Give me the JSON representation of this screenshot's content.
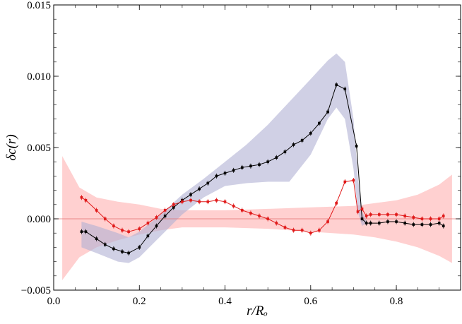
{
  "chart_data": {
    "type": "line",
    "title": "",
    "xlabel": "r/Rₒ",
    "ylabel": "δc(r)",
    "xlim": [
      0.0,
      0.95
    ],
    "ylim": [
      -0.005,
      0.015
    ],
    "x_ticks": [
      {
        "value": 0.0,
        "label": "0.0"
      },
      {
        "value": 0.2,
        "label": "0.2"
      },
      {
        "value": 0.4,
        "label": "0.4"
      },
      {
        "value": 0.6,
        "label": "0.6"
      },
      {
        "value": 0.8,
        "label": "0.8"
      }
    ],
    "y_ticks": [
      {
        "value": -0.005,
        "label": "−0.005"
      },
      {
        "value": 0.0,
        "label": "0.000"
      },
      {
        "value": 0.005,
        "label": "0.005"
      },
      {
        "value": 0.01,
        "label": "0.010"
      },
      {
        "value": 0.015,
        "label": "0.015"
      }
    ],
    "grid": false,
    "reference_line": {
      "y": 0.0,
      "color": "#e07070"
    },
    "bands": [
      {
        "color": "#ffb0b0",
        "opacity": 0.6,
        "x": [
          0.02,
          0.06,
          0.1,
          0.15,
          0.2,
          0.25,
          0.3,
          0.35,
          0.4,
          0.5,
          0.6,
          0.7,
          0.75,
          0.8,
          0.85,
          0.9,
          0.93
        ],
        "upper": [
          0.0044,
          0.0022,
          0.0015,
          0.0012,
          0.001,
          0.0007,
          0.0006,
          0.0006,
          0.0006,
          0.0007,
          0.0008,
          0.0009,
          0.0011,
          0.0013,
          0.0017,
          0.0024,
          0.0031
        ],
        "lower": [
          -0.0043,
          -0.0027,
          -0.002,
          -0.0015,
          -0.0011,
          -0.0008,
          -0.0006,
          -0.0006,
          -0.0006,
          -0.0007,
          -0.0009,
          -0.0011,
          -0.0013,
          -0.0016,
          -0.002,
          -0.0026,
          -0.0031
        ]
      },
      {
        "color": "#b0b0d4",
        "opacity": 0.6,
        "x": [
          0.065,
          0.1,
          0.15,
          0.175,
          0.2,
          0.25,
          0.3,
          0.35,
          0.4,
          0.45,
          0.5,
          0.55,
          0.6,
          0.64,
          0.66,
          0.68,
          0.7,
          0.71,
          0.72,
          0.73
        ],
        "upper": [
          -0.0002,
          -0.0005,
          -0.001,
          -0.0013,
          -0.0009,
          0.0003,
          0.0017,
          0.0028,
          0.004,
          0.0052,
          0.0066,
          0.0082,
          0.0098,
          0.0111,
          0.0116,
          0.011,
          0.007,
          0.003,
          0.0005,
          -0.0001
        ],
        "lower": [
          -0.002,
          -0.0024,
          -0.003,
          -0.0031,
          -0.0027,
          -0.0012,
          0.0003,
          0.0015,
          0.0023,
          0.0025,
          0.0026,
          0.0026,
          0.0045,
          0.007,
          0.0078,
          0.007,
          0.0035,
          0.0005,
          -0.0005,
          -0.0003
        ]
      }
    ],
    "series": [
      {
        "color": "#000000",
        "marker": "square",
        "x": [
          0.065,
          0.075,
          0.1,
          0.12,
          0.14,
          0.16,
          0.175,
          0.2,
          0.22,
          0.24,
          0.26,
          0.28,
          0.3,
          0.32,
          0.34,
          0.36,
          0.38,
          0.4,
          0.42,
          0.44,
          0.46,
          0.48,
          0.5,
          0.52,
          0.54,
          0.56,
          0.58,
          0.6,
          0.62,
          0.64,
          0.66,
          0.68,
          0.707,
          0.72,
          0.73,
          0.74,
          0.76,
          0.78,
          0.8,
          0.82,
          0.84,
          0.86,
          0.88,
          0.9,
          0.91
        ],
        "y": [
          -0.0009,
          -0.0009,
          -0.0014,
          -0.0018,
          -0.0021,
          -0.0023,
          -0.0024,
          -0.002,
          -0.0012,
          -0.0005,
          0.0002,
          0.0008,
          0.0013,
          0.0017,
          0.0021,
          0.0025,
          0.003,
          0.0032,
          0.0034,
          0.0036,
          0.0037,
          0.0038,
          0.004,
          0.0043,
          0.0047,
          0.0052,
          0.0055,
          0.006,
          0.0067,
          0.0075,
          0.0094,
          0.0091,
          0.0051,
          0.0,
          -0.0003,
          -0.0003,
          -0.0003,
          -0.0002,
          -0.0002,
          -0.0003,
          -0.0004,
          -0.0004,
          -0.0004,
          -0.0003,
          -0.0005
        ]
      },
      {
        "color": "#e01818",
        "marker": "square",
        "x": [
          0.065,
          0.075,
          0.1,
          0.12,
          0.14,
          0.16,
          0.175,
          0.2,
          0.22,
          0.24,
          0.26,
          0.28,
          0.3,
          0.32,
          0.34,
          0.36,
          0.38,
          0.4,
          0.42,
          0.44,
          0.46,
          0.48,
          0.5,
          0.52,
          0.54,
          0.56,
          0.58,
          0.6,
          0.62,
          0.64,
          0.66,
          0.68,
          0.7,
          0.71,
          0.72,
          0.73,
          0.74,
          0.76,
          0.78,
          0.8,
          0.82,
          0.84,
          0.86,
          0.88,
          0.9,
          0.91
        ],
        "y": [
          0.0015,
          0.0013,
          0.0006,
          0.0,
          -0.0005,
          -0.0008,
          -0.0009,
          -0.0007,
          -0.0003,
          0.0001,
          0.0006,
          0.001,
          0.0012,
          0.0013,
          0.0012,
          0.0012,
          0.0013,
          0.0012,
          0.0009,
          0.0006,
          0.0004,
          0.0002,
          0.0,
          -0.0003,
          -0.0006,
          -0.0008,
          -0.0008,
          -0.001,
          -0.0008,
          -0.0002,
          0.0011,
          0.0026,
          0.0027,
          0.0005,
          0.0007,
          0.0002,
          0.0003,
          0.0003,
          0.0003,
          0.0003,
          0.0002,
          0.0001,
          0.0,
          0.0,
          0.0,
          0.0002
        ]
      }
    ]
  }
}
